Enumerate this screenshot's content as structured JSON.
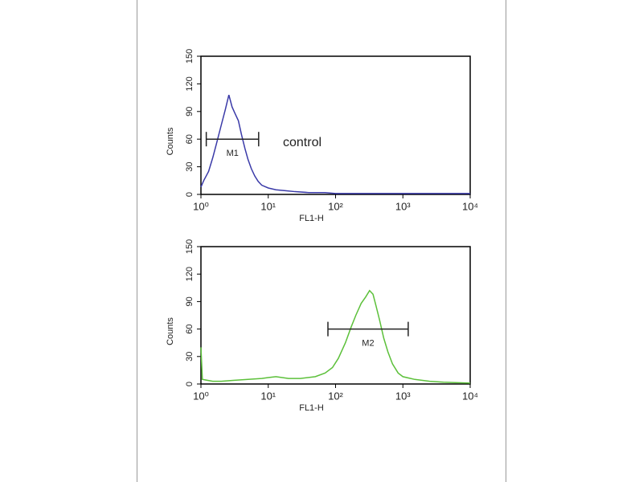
{
  "chart_data": [
    {
      "type": "line",
      "annotation": "control",
      "xlabel": "FL1-H",
      "ylabel": "Counts",
      "xscale": "log",
      "xlim": [
        1,
        10000
      ],
      "xticks": [
        {
          "value": 1,
          "label": "10⁰"
        },
        {
          "value": 10,
          "label": "10¹"
        },
        {
          "value": 100,
          "label": "10²"
        },
        {
          "value": 1000,
          "label": "10³"
        },
        {
          "value": 10000,
          "label": "10⁴"
        }
      ],
      "ylim": [
        0,
        150
      ],
      "yticks": [
        0,
        30,
        60,
        90,
        120,
        150
      ],
      "x": [
        1.0,
        1.1,
        1.3,
        1.5,
        1.7,
        2.0,
        2.3,
        2.6,
        2.9,
        3.2,
        3.6,
        4.0,
        4.5,
        5.0,
        5.6,
        6.3,
        7.1,
        8,
        10,
        13,
        18,
        25,
        40,
        70,
        100,
        200,
        500,
        1000,
        3000,
        10000
      ],
      "series": [
        {
          "color": "#3a3aa8",
          "values": [
            8,
            15,
            25,
            40,
            55,
            75,
            92,
            108,
            95,
            88,
            80,
            65,
            50,
            38,
            28,
            20,
            14,
            10,
            7,
            5,
            4,
            3,
            2,
            2,
            1,
            1,
            1,
            1,
            1,
            1
          ]
        }
      ],
      "markers": [
        {
          "label": "M1",
          "range": [
            1.2,
            7.2
          ],
          "y": 60
        }
      ]
    },
    {
      "type": "line",
      "xlabel": "FL1-H",
      "ylabel": "Counts",
      "xscale": "log",
      "xlim": [
        1,
        10000
      ],
      "xticks": [
        {
          "value": 1,
          "label": "10⁰"
        },
        {
          "value": 10,
          "label": "10¹"
        },
        {
          "value": 100,
          "label": "10²"
        },
        {
          "value": 1000,
          "label": "10³"
        },
        {
          "value": 10000,
          "label": "10⁴"
        }
      ],
      "ylim": [
        0,
        150
      ],
      "yticks": [
        0,
        30,
        60,
        90,
        120,
        150
      ],
      "x": [
        1.0,
        1.05,
        1.5,
        2,
        3,
        5,
        8,
        10,
        13,
        20,
        30,
        50,
        70,
        90,
        110,
        140,
        170,
        200,
        240,
        280,
        320,
        360,
        400,
        450,
        520,
        600,
        700,
        850,
        1000,
        1500,
        2500,
        4000,
        10000
      ],
      "series": [
        {
          "color": "#5cc03a",
          "values": [
            40,
            5,
            3,
            3,
            4,
            5,
            6,
            7,
            8,
            6,
            6,
            8,
            12,
            18,
            28,
            45,
            62,
            75,
            88,
            95,
            102,
            98,
            85,
            70,
            50,
            35,
            22,
            12,
            8,
            5,
            3,
            2,
            1
          ]
        }
      ],
      "markers": [
        {
          "label": "M2",
          "range": [
            77,
            1200
          ],
          "y": 60
        }
      ]
    }
  ]
}
